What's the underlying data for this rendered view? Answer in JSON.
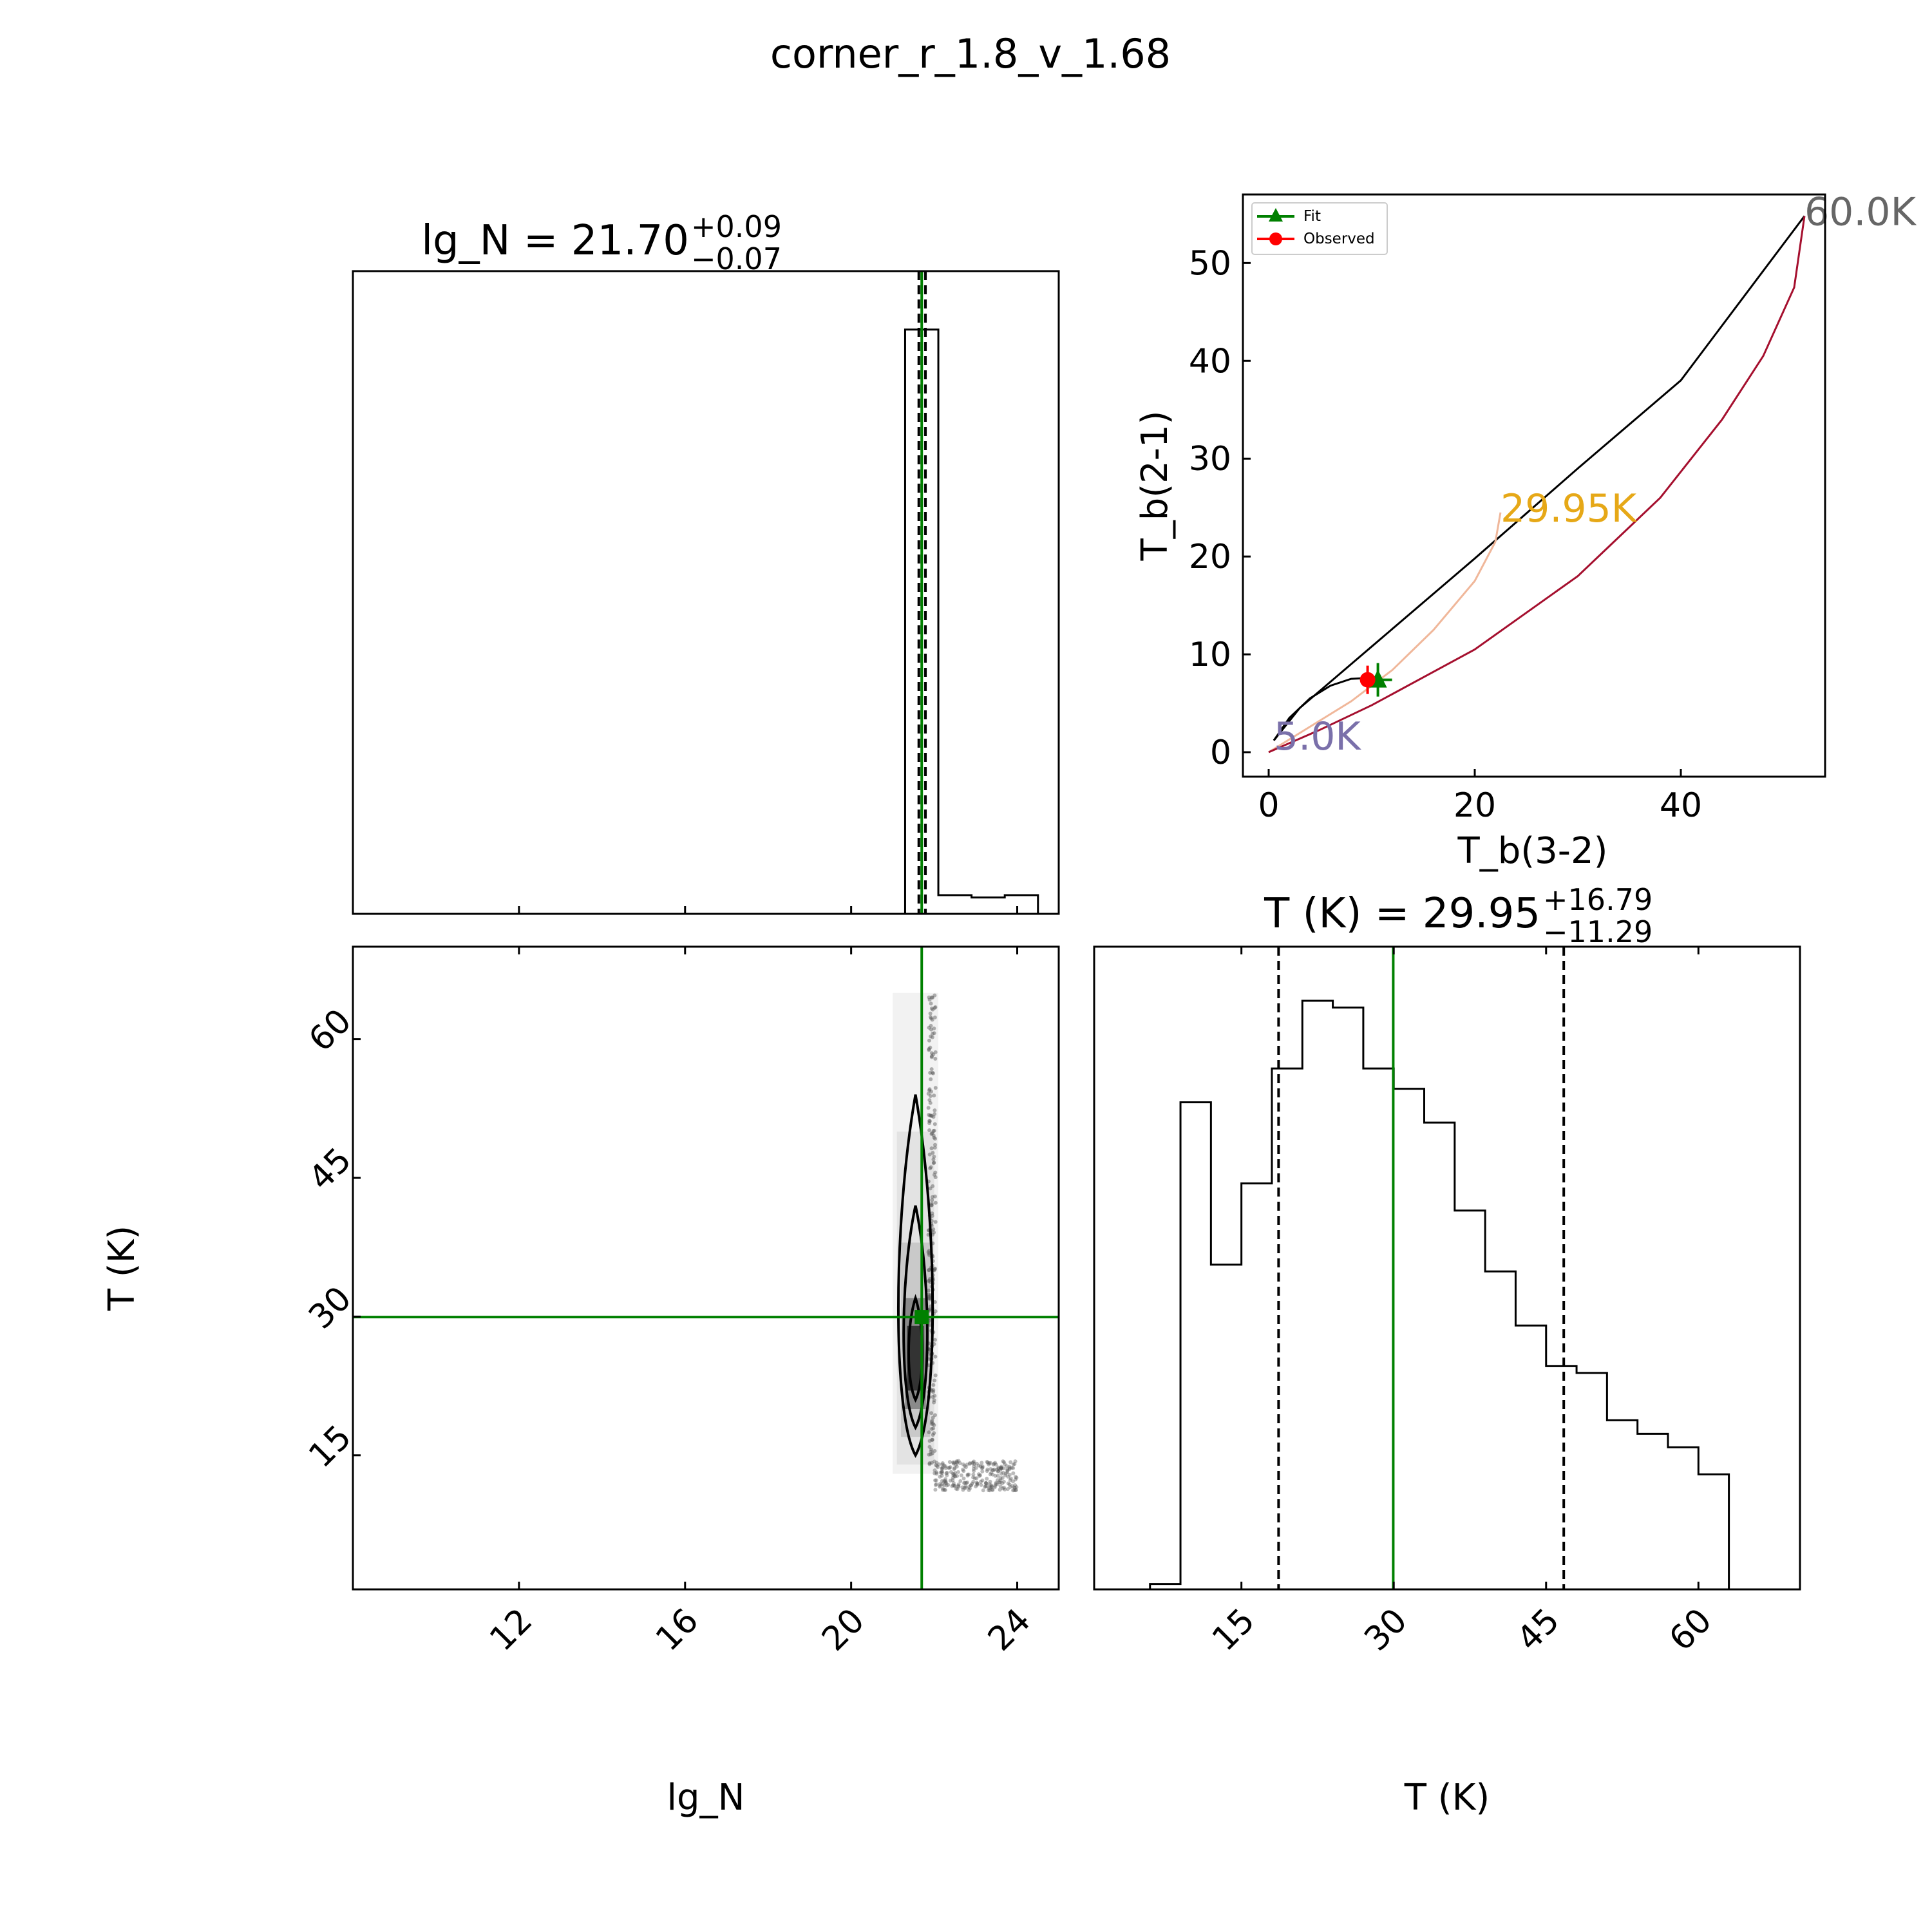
{
  "figure": {
    "title": "corner_r_1.8_v_1.68"
  },
  "chart_data": [
    {
      "panel": "lg_N-histogram",
      "type": "bar",
      "title": {
        "main": "lg_N = 21.70",
        "sup": "+0.09",
        "sub": "−0.07"
      },
      "xlim": [
        8.0,
        25.0
      ],
      "bins": [
        {
          "x0": 8.8,
          "x1": 21.3,
          "count": 0.0
        },
        {
          "x0": 21.3,
          "x1": 22.1,
          "count": 100
        },
        {
          "x0": 22.1,
          "x1": 22.9,
          "count": 3.2
        },
        {
          "x0": 22.9,
          "x1": 23.7,
          "count": 2.8
        },
        {
          "x0": 23.7,
          "x1": 24.5,
          "count": 3.2
        }
      ],
      "ylim": [
        0,
        110
      ],
      "median": 21.7,
      "quantile_lines": [
        21.63,
        21.79
      ],
      "truth_line": 21.7
    },
    {
      "panel": "Tb-ratio-diagram",
      "type": "line",
      "xlabel": "T_b(3-2)",
      "ylabel": "T_b(2-1)",
      "xlim": [
        -2.5,
        54
      ],
      "ylim": [
        -2.5,
        57
      ],
      "x_ticks": [
        0,
        20,
        40
      ],
      "y_ticks": [
        0,
        10,
        20,
        30,
        40,
        50
      ],
      "legend": [
        "Fit",
        "Observed"
      ],
      "legend_position": "top-left",
      "series": [
        {
          "color": "#000000",
          "points": [
            [
              0.5,
              1.2
            ],
            [
              3,
              4.5
            ],
            [
              10,
              10.8
            ],
            [
              20,
              19.8
            ],
            [
              30,
              29.0
            ],
            [
              40,
              38.0
            ],
            [
              52,
              54.8
            ]
          ]
        },
        {
          "color": "#000000",
          "points": [
            [
              0.5,
              1.2
            ],
            [
              2,
              3.5
            ],
            [
              4,
              5.5
            ],
            [
              6,
              6.8
            ],
            [
              8,
              7.5
            ],
            [
              10,
              7.6
            ]
          ]
        },
        {
          "color": "#f0b79a",
          "points": [
            [
              0,
              0
            ],
            [
              4,
              2.6
            ],
            [
              8,
              5.2
            ],
            [
              12,
              8.4
            ],
            [
              16,
              12.5
            ],
            [
              20,
              17.5
            ],
            [
              22,
              21.5
            ],
            [
              22.5,
              24.5
            ]
          ]
        },
        {
          "color": "#a50f2e",
          "points": [
            [
              0,
              0
            ],
            [
              5,
              2.3
            ],
            [
              10,
              4.8
            ],
            [
              20,
              10.5
            ],
            [
              30,
              18.0
            ],
            [
              38,
              26.0
            ],
            [
              44,
              34.0
            ],
            [
              48,
              40.5
            ],
            [
              51,
              47.5
            ],
            [
              52,
              54.8
            ]
          ]
        }
      ],
      "markers": [
        {
          "series": "Fit",
          "x": 10.6,
          "y": 7.4,
          "color": "#008000",
          "shape": "triangle"
        },
        {
          "series": "Observed",
          "x": 9.6,
          "y": 7.4,
          "color": "#ff0000",
          "shape": "circle"
        }
      ],
      "annotations": [
        {
          "text": "60.0K",
          "x": 52,
          "y": 54.8,
          "color": "#666666"
        },
        {
          "text": "29.95K",
          "x": 22.5,
          "y": 24.5,
          "color": "#e6a817"
        },
        {
          "text": "5.0K",
          "x": 0.5,
          "y": 1.2,
          "color": "#7a70aa"
        }
      ]
    },
    {
      "panel": "lg_N-vs-T-2d",
      "type": "scatter",
      "xlabel": "lg_N",
      "ylabel": "T (K)",
      "xlim": [
        8.0,
        25.0
      ],
      "ylim": [
        0.5,
        70
      ],
      "x_ticks": [
        12,
        16,
        20,
        24
      ],
      "y_ticks": [
        15,
        30,
        45,
        60
      ],
      "truth": {
        "x": 21.7,
        "y": 29.95
      }
    },
    {
      "panel": "T-histogram",
      "type": "bar",
      "title": {
        "main": "T (K) = 29.95",
        "sup": "+16.79",
        "sub": "−11.29"
      },
      "xlabel": "T (K)",
      "xlim": [
        0.5,
        70
      ],
      "x_ticks": [
        15,
        30,
        45,
        60
      ],
      "bins": [
        {
          "x0": 3.0,
          "x1": 6.0,
          "count": 0.0
        },
        {
          "x0": 6.0,
          "x1": 9.0,
          "count": 0.8
        },
        {
          "x0": 9.0,
          "x1": 12.0,
          "count": 72
        },
        {
          "x0": 12.0,
          "x1": 15.0,
          "count": 48
        },
        {
          "x0": 15.0,
          "x1": 18.0,
          "count": 60
        },
        {
          "x0": 18.0,
          "x1": 21.0,
          "count": 77
        },
        {
          "x0": 21.0,
          "x1": 24.0,
          "count": 87
        },
        {
          "x0": 24.0,
          "x1": 27.0,
          "count": 86
        },
        {
          "x0": 27.0,
          "x1": 30.0,
          "count": 77
        },
        {
          "x0": 30.0,
          "x1": 33.0,
          "count": 74
        },
        {
          "x0": 33.0,
          "x1": 36.0,
          "count": 69
        },
        {
          "x0": 36.0,
          "x1": 39.0,
          "count": 56
        },
        {
          "x0": 39.0,
          "x1": 42.0,
          "count": 47
        },
        {
          "x0": 42.0,
          "x1": 45.0,
          "count": 39
        },
        {
          "x0": 45.0,
          "x1": 48.0,
          "count": 33
        },
        {
          "x0": 48.0,
          "x1": 51.0,
          "count": 32
        },
        {
          "x0": 51.0,
          "x1": 54.0,
          "count": 25
        },
        {
          "x0": 54.0,
          "x1": 57.0,
          "count": 23
        },
        {
          "x0": 57.0,
          "x1": 60.0,
          "count": 21
        },
        {
          "x0": 60.0,
          "x1": 63.0,
          "count": 17
        }
      ],
      "ylim": [
        0,
        95
      ],
      "median": 29.95,
      "quantile_lines": [
        18.66,
        46.74
      ],
      "truth_line": 29.95
    }
  ]
}
